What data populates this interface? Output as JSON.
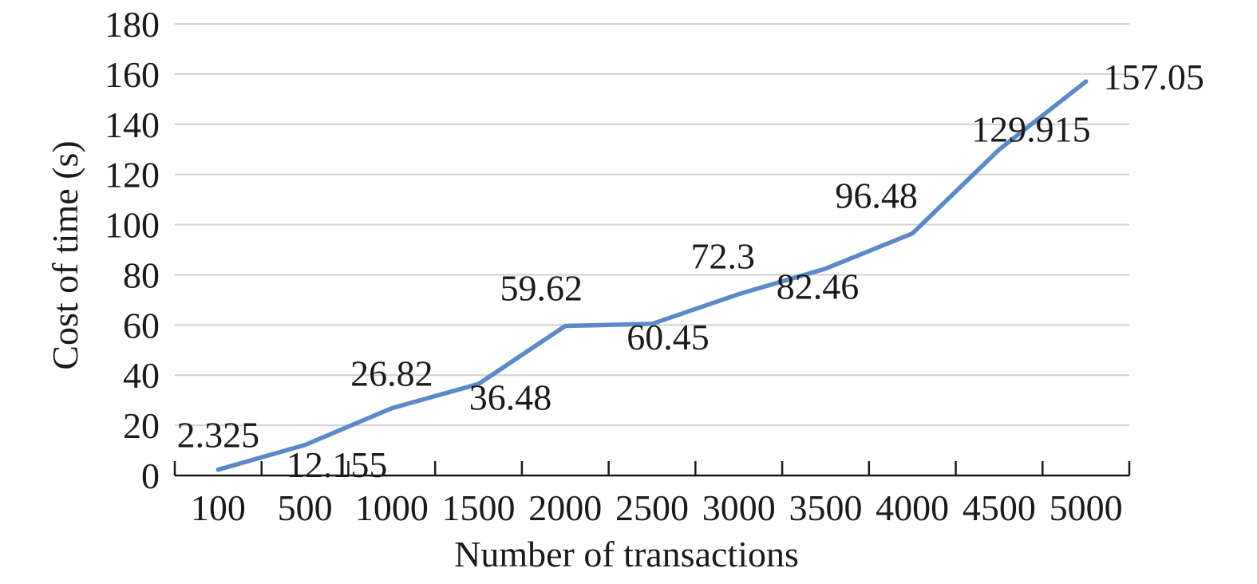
{
  "chart_data": {
    "type": "line",
    "title": "",
    "xlabel": "Number of transactions",
    "ylabel": "Cost of time (s)",
    "categories": [
      "100",
      "500",
      "1000",
      "1500",
      "2000",
      "2500",
      "3000",
      "3500",
      "4000",
      "4500",
      "5000"
    ],
    "y_ticks": [
      "0",
      "20",
      "40",
      "60",
      "80",
      "100",
      "120",
      "140",
      "160",
      "180"
    ],
    "ylim": [
      0,
      180
    ],
    "grid": true,
    "legend": "none",
    "series": [
      {
        "values": [
          2.325,
          12.155,
          26.82,
          36.48,
          59.62,
          60.45,
          72.3,
          82.46,
          96.48,
          129.915,
          157.05
        ],
        "labels": [
          "2.325",
          "12.155",
          "26.82",
          "36.48",
          "59.62",
          "60.45",
          "72.3",
          "82.46",
          "96.48",
          "129.915",
          "157.05"
        ],
        "color": "#5b8ac7"
      }
    ]
  }
}
